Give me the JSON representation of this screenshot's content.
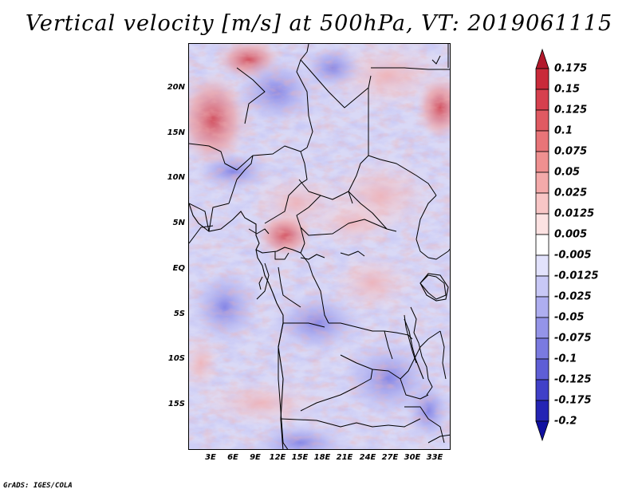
{
  "title": "Vertical velocity [m/s] at 500hPa, VT: 2019061115",
  "credit": "GrADS: IGES/COLA",
  "map": {
    "lon_ticks": [
      "3E",
      "6E",
      "9E",
      "12E",
      "15E",
      "18E",
      "21E",
      "24E",
      "27E",
      "30E",
      "33E"
    ],
    "lat_ticks": [
      "20N",
      "15N",
      "10N",
      "5N",
      "EQ",
      "5S",
      "10S",
      "15S"
    ],
    "lon_range": [
      0,
      35
    ],
    "lat_range": [
      -20,
      25
    ]
  },
  "colorbar": {
    "labels": [
      "0.175",
      "0.15",
      "0.125",
      "0.1",
      "0.075",
      "0.05",
      "0.025",
      "0.0125",
      "0.005",
      "-0.005",
      "-0.0125",
      "-0.025",
      "-0.05",
      "-0.075",
      "-0.1",
      "-0.125",
      "-0.175",
      "-0.2"
    ],
    "colors": [
      "#b2182b",
      "#c92a3a",
      "#d6404e",
      "#e05a62",
      "#e87478",
      "#ef9090",
      "#f4aaaa",
      "#f8c6c6",
      "#fce2e2",
      "#ffffff",
      "#e2e2fc",
      "#c8c8f6",
      "#aeaef0",
      "#9494e8",
      "#7a7ae0",
      "#5e5ed6",
      "#4040c8",
      "#2424b4",
      "#1010a0"
    ]
  }
}
